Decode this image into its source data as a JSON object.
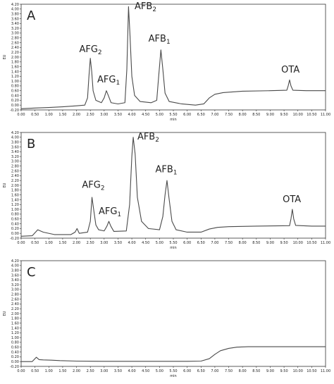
{
  "chart_data": [
    {
      "type": "line",
      "panel_label": "A",
      "xlabel": "min",
      "ylabel": "EU",
      "xlim": [
        0,
        11
      ],
      "ylim": [
        -0.2,
        4.2
      ],
      "xticks": [
        {
          "value": 0,
          "label": "0.00"
        },
        {
          "value": 0.5,
          "label": "0.50"
        },
        {
          "value": 1,
          "label": "1.00"
        },
        {
          "value": 1.5,
          "label": "1.50"
        },
        {
          "value": 2,
          "label": "2.00"
        },
        {
          "value": 2.5,
          "label": "2.50"
        },
        {
          "value": 3,
          "label": "3.00"
        },
        {
          "value": 3.5,
          "label": "3.50"
        },
        {
          "value": 4,
          "label": "4.00"
        },
        {
          "value": 4.5,
          "label": "4.50"
        },
        {
          "value": 5,
          "label": "5.00"
        },
        {
          "value": 5.5,
          "label": "5.50"
        },
        {
          "value": 6,
          "label": "6.00"
        },
        {
          "value": 6.5,
          "label": "6.50"
        },
        {
          "value": 7,
          "label": "7.00"
        },
        {
          "value": 7.5,
          "label": "7.50"
        },
        {
          "value": 8,
          "label": "8.00"
        },
        {
          "value": 8.5,
          "label": "8.50"
        },
        {
          "value": 9,
          "label": "9.00"
        },
        {
          "value": 9.5,
          "label": "9.50"
        },
        {
          "value": 10,
          "label": "10.00"
        },
        {
          "value": 10.5,
          "label": "10.50"
        },
        {
          "value": 11,
          "label": "11.00"
        }
      ],
      "yticks": [
        {
          "value": -0.2,
          "label": "-0.20"
        },
        {
          "value": 0,
          "label": "0.00"
        },
        {
          "value": 0.2,
          "label": "0.20"
        },
        {
          "value": 0.4,
          "label": "0.40"
        },
        {
          "value": 0.6,
          "label": "0.60"
        },
        {
          "value": 0.8,
          "label": "0.80"
        },
        {
          "value": 1,
          "label": "1.00"
        },
        {
          "value": 1.2,
          "label": "1.20"
        },
        {
          "value": 1.4,
          "label": "1.40"
        },
        {
          "value": 1.6,
          "label": "1.60"
        },
        {
          "value": 1.8,
          "label": "1.80"
        },
        {
          "value": 2,
          "label": "2.00"
        },
        {
          "value": 2.2,
          "label": "2.20"
        },
        {
          "value": 2.4,
          "label": "2.40"
        },
        {
          "value": 2.6,
          "label": "2.60"
        },
        {
          "value": 2.8,
          "label": "2.80"
        },
        {
          "value": 3,
          "label": "3.00"
        },
        {
          "value": 3.2,
          "label": "3.20"
        },
        {
          "value": 3.4,
          "label": "3.40"
        },
        {
          "value": 3.6,
          "label": "3.60"
        },
        {
          "value": 3.8,
          "label": "3.80"
        },
        {
          "value": 4,
          "label": "4.00"
        },
        {
          "value": 4.2,
          "label": "4.20"
        }
      ],
      "x": [
        0,
        0.5,
        1,
        1.5,
        2,
        2.3,
        2.4,
        2.45,
        2.5,
        2.55,
        2.6,
        2.7,
        2.9,
        3,
        3.08,
        3.15,
        3.25,
        3.5,
        3.75,
        3.82,
        3.88,
        3.93,
        4,
        4.1,
        4.3,
        4.7,
        4.9,
        4.97,
        5.05,
        5.12,
        5.2,
        5.35,
        5.8,
        6.3,
        6.6,
        6.8,
        7,
        7.3,
        8,
        9,
        9.6,
        9.65,
        9.7,
        9.75,
        9.82,
        10.3,
        11
      ],
      "series": [
        {
          "color": "#4a4a4a",
          "values": [
            -0.15,
            -0.12,
            -0.1,
            -0.07,
            -0.03,
            0,
            0.3,
            1.2,
            1.95,
            1.4,
            0.6,
            0.2,
            0.1,
            0.3,
            0.6,
            0.4,
            0.1,
            0.05,
            0.1,
            1.5,
            4.1,
            3,
            1.2,
            0.4,
            0.15,
            0.1,
            0.2,
            1.2,
            2.3,
            1.5,
            0.5,
            0.15,
            0.05,
            0,
            0.05,
            0.3,
            0.45,
            0.52,
            0.58,
            0.6,
            0.62,
            0.8,
            1.05,
            0.8,
            0.62,
            0.6,
            0.6
          ]
        }
      ],
      "annotations": [
        {
          "text": "AFG",
          "sub": "2",
          "x": 2.1,
          "y": 2.2
        },
        {
          "text": "AFG",
          "sub": "1",
          "x": 2.75,
          "y": 0.95
        },
        {
          "text": "AFB",
          "sub": "2",
          "x": 4.1,
          "y": 4.0
        },
        {
          "text": "AFB",
          "sub": "1",
          "x": 4.6,
          "y": 2.65
        },
        {
          "text": "OTA",
          "x": 9.4,
          "y": 1.35
        }
      ]
    },
    {
      "type": "line",
      "panel_label": "B",
      "xlabel": "min",
      "ylabel": "EU",
      "xlim": [
        0,
        11
      ],
      "ylim": [
        -0.2,
        4.2
      ],
      "xticks": [
        {
          "value": 0,
          "label": "0.00"
        },
        {
          "value": 0.5,
          "label": "0.50"
        },
        {
          "value": 1,
          "label": "1.00"
        },
        {
          "value": 1.5,
          "label": "1.50"
        },
        {
          "value": 2,
          "label": "2.00"
        },
        {
          "value": 2.5,
          "label": "2.50"
        },
        {
          "value": 3,
          "label": "3.00"
        },
        {
          "value": 3.5,
          "label": "3.50"
        },
        {
          "value": 4,
          "label": "4.00"
        },
        {
          "value": 4.5,
          "label": "4.50"
        },
        {
          "value": 5,
          "label": "5.00"
        },
        {
          "value": 5.5,
          "label": "5.50"
        },
        {
          "value": 6,
          "label": "6.00"
        },
        {
          "value": 6.5,
          "label": "6.50"
        },
        {
          "value": 7,
          "label": "7.00"
        },
        {
          "value": 7.5,
          "label": "7.50"
        },
        {
          "value": 8,
          "label": "8.00"
        },
        {
          "value": 8.5,
          "label": "8.50"
        },
        {
          "value": 9,
          "label": "9.00"
        },
        {
          "value": 9.5,
          "label": "9.50"
        },
        {
          "value": 10,
          "label": "10.00"
        },
        {
          "value": 10.5,
          "label": "10.50"
        },
        {
          "value": 11,
          "label": "11.00"
        }
      ],
      "yticks": [
        {
          "value": -0.2,
          "label": "-0.20"
        },
        {
          "value": 0,
          "label": "0.00"
        },
        {
          "value": 0.2,
          "label": "0.20"
        },
        {
          "value": 0.4,
          "label": "0.40"
        },
        {
          "value": 0.6,
          "label": "0.60"
        },
        {
          "value": 0.8,
          "label": "0.80"
        },
        {
          "value": 1,
          "label": "1.00"
        },
        {
          "value": 1.2,
          "label": "1.20"
        },
        {
          "value": 1.4,
          "label": "1.40"
        },
        {
          "value": 1.6,
          "label": "1.60"
        },
        {
          "value": 1.8,
          "label": "1.80"
        },
        {
          "value": 2,
          "label": "2.00"
        },
        {
          "value": 2.2,
          "label": "2.20"
        },
        {
          "value": 2.4,
          "label": "2.40"
        },
        {
          "value": 2.6,
          "label": "2.60"
        },
        {
          "value": 2.8,
          "label": "2.80"
        },
        {
          "value": 3,
          "label": "3.00"
        },
        {
          "value": 3.2,
          "label": "3.20"
        },
        {
          "value": 3.4,
          "label": "3.40"
        },
        {
          "value": 3.6,
          "label": "3.60"
        },
        {
          "value": 3.8,
          "label": "3.80"
        },
        {
          "value": 4,
          "label": "4.00"
        },
        {
          "value": 4.2,
          "label": "4.20"
        }
      ],
      "x": [
        0,
        0.4,
        0.6,
        0.8,
        1.2,
        1.8,
        1.95,
        2.02,
        2.1,
        2.4,
        2.5,
        2.56,
        2.62,
        2.7,
        2.8,
        3,
        3.1,
        3.17,
        3.24,
        3.35,
        3.8,
        3.92,
        4,
        4.05,
        4.12,
        4.2,
        4.35,
        4.6,
        5,
        5.12,
        5.2,
        5.27,
        5.34,
        5.45,
        5.6,
        6,
        6.5,
        6.8,
        7.1,
        7.5,
        8.5,
        9.7,
        9.75,
        9.8,
        9.85,
        9.92,
        10.5,
        11
      ],
      "series": [
        {
          "color": "#4a4a4a",
          "values": [
            -0.12,
            -0.1,
            0.15,
            0.05,
            -0.05,
            -0.05,
            0.05,
            0.2,
            0,
            0.05,
            0.5,
            1.5,
            1,
            0.35,
            0.15,
            0.1,
            0.3,
            0.5,
            0.3,
            0.08,
            0.1,
            1.2,
            3.2,
            4,
            3.3,
            1.5,
            0.5,
            0.2,
            0.15,
            0.7,
            1.6,
            2.2,
            1.5,
            0.5,
            0.15,
            0.05,
            0.05,
            0.18,
            0.25,
            0.28,
            0.3,
            0.32,
            0.6,
            1,
            0.6,
            0.33,
            0.3,
            0.3
          ]
        }
      ],
      "annotations": [
        {
          "text": "AFG",
          "sub": "2",
          "x": 2.2,
          "y": 1.9
        },
        {
          "text": "AFG",
          "sub": "1",
          "x": 2.8,
          "y": 0.8
        },
        {
          "text": "AFB",
          "sub": "2",
          "x": 4.2,
          "y": 3.9
        },
        {
          "text": "AFB",
          "sub": "1",
          "x": 4.85,
          "y": 2.55
        },
        {
          "text": "OTA",
          "x": 9.45,
          "y": 1.3
        }
      ]
    },
    {
      "type": "line",
      "panel_label": "C",
      "xlabel": "min",
      "ylabel": "EU",
      "xlim": [
        0,
        11
      ],
      "ylim": [
        -0.2,
        4.2
      ],
      "xticks": [
        {
          "value": 0,
          "label": "0.00"
        },
        {
          "value": 0.5,
          "label": "0.50"
        },
        {
          "value": 1,
          "label": "1.00"
        },
        {
          "value": 1.5,
          "label": "1.50"
        },
        {
          "value": 2,
          "label": "2.00"
        },
        {
          "value": 2.5,
          "label": "2.50"
        },
        {
          "value": 3,
          "label": "3.00"
        },
        {
          "value": 3.5,
          "label": "3.50"
        },
        {
          "value": 4,
          "label": "4.00"
        },
        {
          "value": 4.5,
          "label": "4.50"
        },
        {
          "value": 5,
          "label": "5.00"
        },
        {
          "value": 5.5,
          "label": "5.50"
        },
        {
          "value": 6,
          "label": "6.00"
        },
        {
          "value": 6.5,
          "label": "6.50"
        },
        {
          "value": 7,
          "label": "7.00"
        },
        {
          "value": 7.5,
          "label": "7.50"
        },
        {
          "value": 8,
          "label": "8.00"
        },
        {
          "value": 8.5,
          "label": "8.50"
        },
        {
          "value": 9,
          "label": "9.00"
        },
        {
          "value": 9.5,
          "label": "9.50"
        },
        {
          "value": 10,
          "label": "10.00"
        },
        {
          "value": 10.5,
          "label": "10.50"
        },
        {
          "value": 11,
          "label": "11.00"
        }
      ],
      "yticks": [
        {
          "value": -0.2,
          "label": "-0.20"
        },
        {
          "value": 0,
          "label": "0.00"
        },
        {
          "value": 0.2,
          "label": "0.20"
        },
        {
          "value": 0.4,
          "label": "0.40"
        },
        {
          "value": 0.6,
          "label": "0.60"
        },
        {
          "value": 0.8,
          "label": "0.80"
        },
        {
          "value": 1,
          "label": "1.00"
        },
        {
          "value": 1.2,
          "label": "1.20"
        },
        {
          "value": 1.4,
          "label": "1.40"
        },
        {
          "value": 1.6,
          "label": "1.60"
        },
        {
          "value": 1.8,
          "label": "1.80"
        },
        {
          "value": 2,
          "label": "2.00"
        },
        {
          "value": 2.2,
          "label": "2.20"
        },
        {
          "value": 2.4,
          "label": "2.40"
        },
        {
          "value": 2.6,
          "label": "2.60"
        },
        {
          "value": 2.8,
          "label": "2.80"
        },
        {
          "value": 3,
          "label": "3.00"
        },
        {
          "value": 3.2,
          "label": "3.20"
        },
        {
          "value": 3.4,
          "label": "3.40"
        },
        {
          "value": 3.6,
          "label": "3.60"
        },
        {
          "value": 3.8,
          "label": "3.80"
        },
        {
          "value": 4,
          "label": "4.00"
        },
        {
          "value": 4.2,
          "label": "4.20"
        }
      ],
      "x": [
        0,
        0.4,
        0.55,
        0.65,
        0.8,
        1.1,
        1.4,
        2,
        3,
        4,
        5,
        6,
        6.5,
        6.8,
        7,
        7.2,
        7.5,
        7.8,
        8.2,
        9,
        10,
        11
      ],
      "series": [
        {
          "color": "#4a4a4a",
          "values": [
            0,
            0,
            0.18,
            0.08,
            0.07,
            0.06,
            0.04,
            0.02,
            0.01,
            0.01,
            0.01,
            0.01,
            0.02,
            0.12,
            0.3,
            0.45,
            0.55,
            0.6,
            0.62,
            0.62,
            0.62,
            0.62
          ]
        }
      ],
      "annotations": []
    }
  ]
}
